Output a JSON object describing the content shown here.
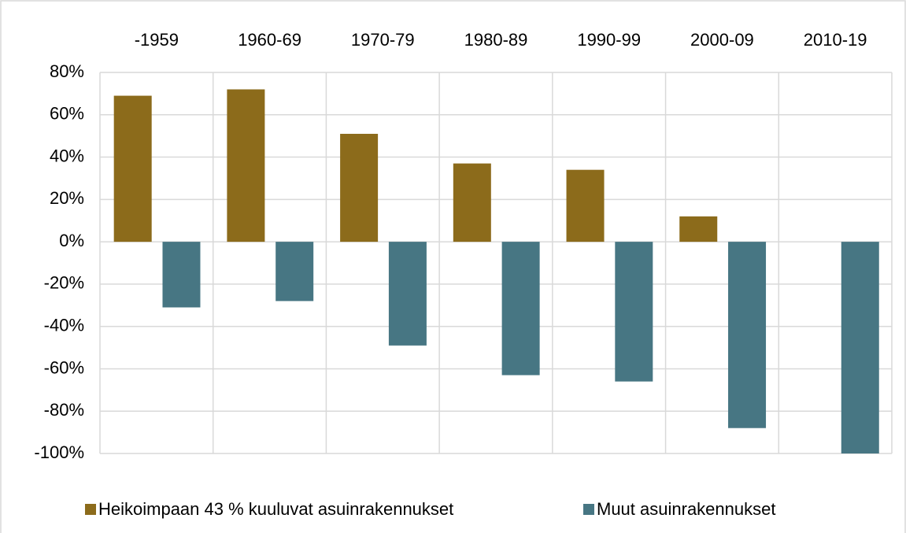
{
  "chart_data": {
    "type": "bar",
    "categories": [
      "-1959",
      "1960-69",
      "1970-79",
      "1980-89",
      "1990-99",
      "2000-09",
      "2010-19"
    ],
    "series": [
      {
        "name": "Heikoimpaan 43 % kuuluvat asuinrakennukset",
        "color": "#8c6b1b",
        "values": [
          69,
          72,
          51,
          37,
          34,
          12,
          null
        ]
      },
      {
        "name": "Muut asuinrakennukset",
        "color": "#477683",
        "values": [
          -31,
          -28,
          -49,
          -63,
          -66,
          -88,
          -100
        ]
      }
    ],
    "ylim": [
      -100,
      80
    ],
    "yticks": [
      {
        "value": -100,
        "label": "-100%"
      },
      {
        "value": -80,
        "label": "-80%"
      },
      {
        "value": -60,
        "label": "-60%"
      },
      {
        "value": -40,
        "label": "-40%"
      },
      {
        "value": -20,
        "label": "-20%"
      },
      {
        "value": 0,
        "label": "0%"
      },
      {
        "value": 20,
        "label": "20%"
      },
      {
        "value": 40,
        "label": "40%"
      },
      {
        "value": 60,
        "label": "60%"
      },
      {
        "value": 80,
        "label": "80%"
      }
    ],
    "grid": true,
    "legend": "bottom"
  }
}
